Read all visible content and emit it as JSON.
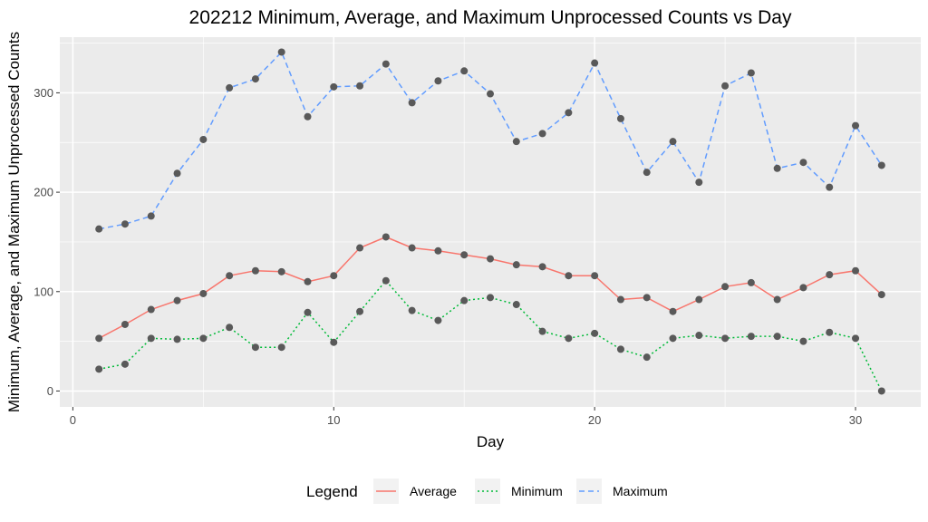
{
  "chart_data": {
    "type": "line",
    "title": "202212 Minimum, Average, and Maximum Unprocessed Counts vs Day",
    "xlabel": "Day",
    "ylabel": "Minimum, Average, and Maximum Unprocessed Counts",
    "xlim": [
      -0.5,
      32.5
    ],
    "ylim": [
      -16,
      356
    ],
    "x_ticks": [
      0,
      10,
      20,
      30
    ],
    "y_ticks": [
      0,
      100,
      200,
      300
    ],
    "grid": true,
    "legend": {
      "title": "Legend",
      "position": "bottom"
    },
    "x": [
      1,
      2,
      3,
      4,
      5,
      6,
      7,
      8,
      9,
      10,
      11,
      12,
      13,
      14,
      15,
      16,
      17,
      18,
      19,
      20,
      21,
      22,
      23,
      24,
      25,
      26,
      27,
      28,
      29,
      30,
      31
    ],
    "series": [
      {
        "name": "Average",
        "color": "#F8766D",
        "dash": "solid",
        "values": [
          53,
          67,
          82,
          91,
          98,
          116,
          121,
          120,
          110,
          116,
          144,
          155,
          144,
          141,
          137,
          133,
          127,
          125,
          116,
          116,
          92,
          94,
          80,
          92,
          105,
          109,
          92,
          104,
          117,
          121,
          97
        ]
      },
      {
        "name": "Minimum",
        "color": "#00BA38",
        "dash": "dotted",
        "values": [
          22,
          27,
          53,
          52,
          53,
          64,
          44,
          44,
          79,
          49,
          80,
          111,
          81,
          71,
          91,
          94,
          87,
          60,
          53,
          58,
          42,
          34,
          53,
          56,
          53,
          55,
          55,
          50,
          59,
          53,
          0
        ]
      },
      {
        "name": "Maximum",
        "color": "#619CFF",
        "dash": "dashed",
        "values": [
          163,
          168,
          176,
          219,
          253,
          305,
          314,
          341,
          276,
          306,
          307,
          329,
          290,
          312,
          322,
          299,
          251,
          259,
          280,
          330,
          274,
          220,
          251,
          210,
          307,
          320,
          224,
          230,
          205,
          267,
          227
        ]
      }
    ],
    "point_color": "#595959",
    "panel_color": "#EBEBEB",
    "grid_color": "#FFFFFF"
  }
}
